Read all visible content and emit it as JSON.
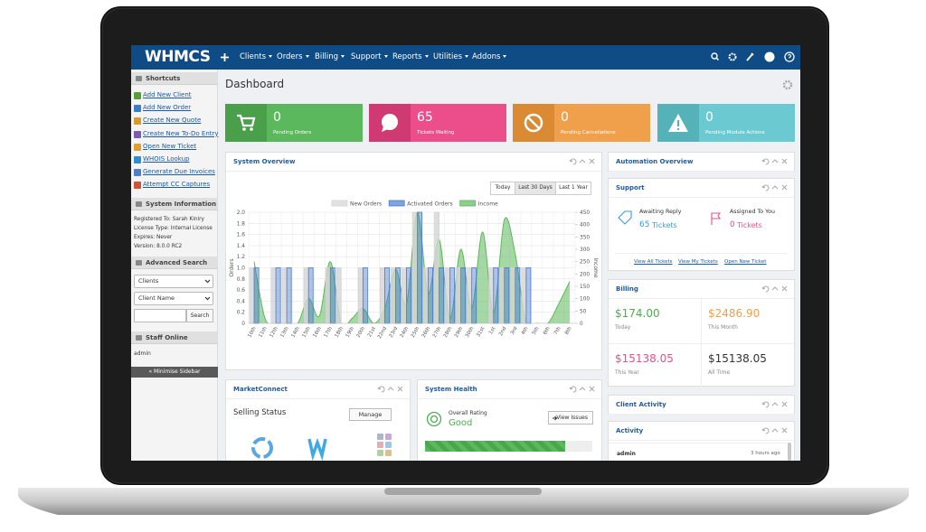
{
  "nav": {
    "brand": "WHMCS",
    "items": [
      "Clients",
      "Orders",
      "Billing",
      "Support",
      "Reports",
      "Utilities",
      "Addons"
    ]
  },
  "sidebar": {
    "shortcuts": {
      "title": "Shortcuts",
      "links": [
        "Add New Client",
        "Add New Order",
        "Create New Quote",
        "Create New To-Do Entry",
        "Open New Ticket",
        "WHOIS Lookup",
        "Generate Due Invoices",
        "Attempt CC Captures"
      ]
    },
    "system_information": {
      "title": "System Information",
      "lines": [
        "Registered To: Sarah Kiniry",
        "License Type: Internal License",
        "Expires: Never",
        "Version: 8.0.0 RC2"
      ]
    },
    "advanced_search": {
      "title": "Advanced Search",
      "type_select": "Clients",
      "field_select": "Client Name",
      "button": "Search"
    },
    "staff_online": {
      "title": "Staff Online",
      "staff": [
        "admin"
      ]
    },
    "minimise": "« Minimise Sidebar"
  },
  "dashboard": {
    "title": "Dashboard",
    "tiles": [
      {
        "value": 0,
        "label": "Pending Orders"
      },
      {
        "value": 65,
        "label": "Tickets Waiting"
      },
      {
        "value": 0,
        "label": "Pending Cancellations"
      },
      {
        "value": 0,
        "label": "Pending Module Actions"
      }
    ]
  },
  "system_overview": {
    "title": "System Overview",
    "ranges": [
      "Today",
      "Last 30 Days",
      "Last 1 Year"
    ]
  },
  "chart_data": {
    "type": "bar",
    "y_label": "Orders",
    "y2_label": "Income",
    "categories": [
      "10th",
      "11th",
      "12th",
      "13th",
      "14th",
      "15th",
      "16th",
      "17th",
      "18th",
      "19th",
      "20th",
      "21st",
      "22nd",
      "23rd",
      "24th",
      "25th",
      "26th",
      "27th",
      "28th",
      "29th",
      "30th",
      "31st",
      "1st",
      "2nd",
      "3rd",
      "4th",
      "5th",
      "6th",
      "7th",
      "8th"
    ],
    "series": [
      {
        "name": "New Orders",
        "color": "#d4d4d4",
        "values": [
          1,
          0,
          1,
          1,
          0,
          1,
          0,
          1,
          1,
          0,
          1,
          0,
          1,
          1,
          1,
          2,
          1,
          2,
          1,
          1,
          1,
          0,
          1,
          1,
          1,
          1,
          0,
          0,
          0,
          0
        ]
      },
      {
        "name": "Activated Orders",
        "color": "#4a7bd0",
        "values": [
          1,
          0,
          1,
          1,
          0,
          1,
          0,
          1,
          0,
          0,
          1,
          0,
          1,
          1,
          1,
          2,
          1,
          1,
          1,
          1,
          1,
          0,
          1,
          1,
          1,
          1,
          0,
          0,
          0,
          0
        ]
      },
      {
        "name": "Income",
        "color": "#5cb85c",
        "type": "area",
        "axis": "y2",
        "values": [
          250,
          20,
          0,
          0,
          0,
          100,
          30,
          250,
          0,
          20,
          60,
          0,
          60,
          220,
          80,
          450,
          120,
          340,
          20,
          300,
          60,
          370,
          40,
          420,
          280,
          0,
          0,
          0,
          80,
          170
        ]
      }
    ],
    "ylim": [
      0,
      2
    ],
    "yticks": [
      0,
      0.2,
      0.4,
      0.6,
      0.8,
      {
        "value": 1,
        "label": "1.0"
      },
      1.2,
      1.4,
      1.6,
      1.8,
      {
        "value": 2,
        "label": "2.0"
      }
    ],
    "y2lim": [
      0,
      450
    ],
    "y2ticks": [
      0,
      50,
      100,
      150,
      200,
      250,
      300,
      350,
      400,
      450
    ],
    "grid": true
  },
  "automation_overview": {
    "title": "Automation Overview"
  },
  "support": {
    "title": "Support",
    "awaiting": {
      "label": "Awaiting Reply",
      "count": 65,
      "unit": "Tickets"
    },
    "assigned": {
      "label": "Assigned To You",
      "count": 0,
      "unit": "Tickets"
    },
    "links": [
      "View All Tickets",
      "View My Tickets",
      "Open New Ticket"
    ]
  },
  "billing": {
    "title": "Billing",
    "cells": [
      {
        "amount": "$174.00",
        "label": "Today"
      },
      {
        "amount": "$2486.90",
        "label": "This Month"
      },
      {
        "amount": "$15138.05",
        "label": "This Year"
      },
      {
        "amount": "$15138.05",
        "label": "All Time"
      }
    ]
  },
  "client_activity": {
    "title": "Client Activity"
  },
  "activity": {
    "title": "Activity",
    "entries": [
      {
        "user": "admin",
        "time": "3 hours ago"
      }
    ]
  },
  "marketconnect": {
    "title": "MarketConnect",
    "heading": "Selling Status",
    "button": "Manage"
  },
  "system_health": {
    "title": "System Health",
    "rating_label": "Overall Rating",
    "rating": "Good",
    "button": "View Issues"
  }
}
